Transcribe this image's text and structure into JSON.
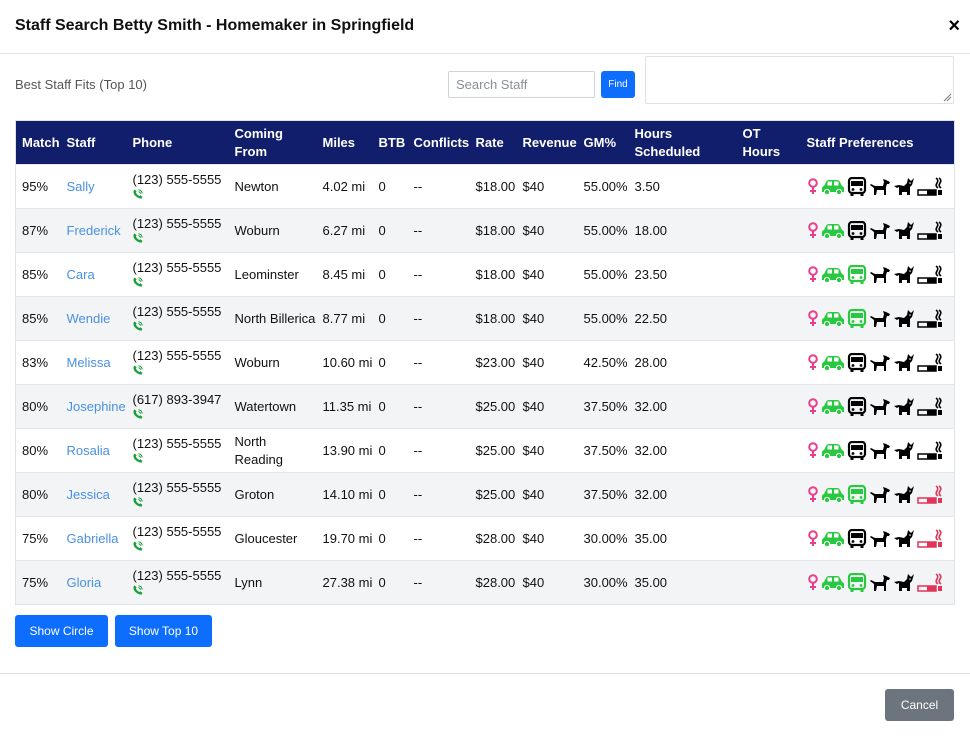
{
  "modal": {
    "title": "Staff Search Betty Smith - Homemaker in Springfield",
    "close_label": "×"
  },
  "toolbar": {
    "best_label": "Best Staff Fits (Top 10)",
    "search_placeholder": "Search Staff",
    "find_label": "Find"
  },
  "table": {
    "headers": {
      "match": "Match",
      "staff": "Staff",
      "phone": "Phone",
      "coming_from": "Coming From",
      "miles": "Miles",
      "btb": "BTB",
      "conflicts": "Conflicts",
      "rate": "Rate",
      "revenue": "Revenue",
      "gm": "GM%",
      "hours_scheduled": "Hours Scheduled",
      "ot_hours": "OT Hours",
      "preferences": "Staff Preferences"
    },
    "rows": [
      {
        "match": "95%",
        "staff": "Sally",
        "phone": "(123) 555-5555",
        "from": "Newton",
        "miles": "4.02 mi",
        "btb": "0",
        "conflicts": "--",
        "rate": "$18.00",
        "revenue": "$40",
        "gm": "55.00%",
        "hours": "3.50",
        "ot": "",
        "prefs": {
          "bus": "black",
          "smoke": "black"
        }
      },
      {
        "match": "87%",
        "staff": "Frederick",
        "phone": "(123) 555-5555",
        "from": "Woburn",
        "miles": "6.27 mi",
        "btb": "0",
        "conflicts": "--",
        "rate": "$18.00",
        "revenue": "$40",
        "gm": "55.00%",
        "hours": "18.00",
        "ot": "",
        "prefs": {
          "bus": "black",
          "smoke": "black"
        }
      },
      {
        "match": "85%",
        "staff": "Cara",
        "phone": "(123) 555-5555",
        "from": "Leominster",
        "miles": "8.45 mi",
        "btb": "0",
        "conflicts": "--",
        "rate": "$18.00",
        "revenue": "$40",
        "gm": "55.00%",
        "hours": "23.50",
        "ot": "",
        "prefs": {
          "bus": "green",
          "smoke": "black"
        }
      },
      {
        "match": "85%",
        "staff": "Wendie",
        "phone": "(123) 555-5555",
        "from": "North Billerica",
        "miles": "8.77 mi",
        "btb": "0",
        "conflicts": "--",
        "rate": "$18.00",
        "revenue": "$40",
        "gm": "55.00%",
        "hours": "22.50",
        "ot": "",
        "prefs": {
          "bus": "green",
          "smoke": "black"
        }
      },
      {
        "match": "83%",
        "staff": "Melissa",
        "phone": "(123) 555-5555",
        "from": "Woburn",
        "miles": "10.60 mi",
        "btb": "0",
        "conflicts": "--",
        "rate": "$23.00",
        "revenue": "$40",
        "gm": "42.50%",
        "hours": "28.00",
        "ot": "",
        "prefs": {
          "bus": "black",
          "smoke": "black"
        }
      },
      {
        "match": "80%",
        "staff": "Josephine",
        "phone": "(617) 893-3947",
        "from": "Watertown",
        "miles": "11.35 mi",
        "btb": "0",
        "conflicts": "--",
        "rate": "$25.00",
        "revenue": "$40",
        "gm": "37.50%",
        "hours": "32.00",
        "ot": "",
        "prefs": {
          "bus": "black",
          "smoke": "black"
        }
      },
      {
        "match": "80%",
        "staff": "Rosalia",
        "phone": "(123) 555-5555",
        "from": "North Reading",
        "miles": "13.90 mi",
        "btb": "0",
        "conflicts": "--",
        "rate": "$25.00",
        "revenue": "$40",
        "gm": "37.50%",
        "hours": "32.00",
        "ot": "",
        "prefs": {
          "bus": "black",
          "smoke": "black"
        }
      },
      {
        "match": "80%",
        "staff": "Jessica",
        "phone": "(123) 555-5555",
        "from": "Groton",
        "miles": "14.10 mi",
        "btb": "0",
        "conflicts": "--",
        "rate": "$25.00",
        "revenue": "$40",
        "gm": "37.50%",
        "hours": "32.00",
        "ot": "",
        "prefs": {
          "bus": "green",
          "smoke": "red"
        }
      },
      {
        "match": "75%",
        "staff": "Gabriella",
        "phone": "(123) 555-5555",
        "from": "Gloucester",
        "miles": "19.70 mi",
        "btb": "0",
        "conflicts": "--",
        "rate": "$28.00",
        "revenue": "$40",
        "gm": "30.00%",
        "hours": "35.00",
        "ot": "",
        "prefs": {
          "bus": "black",
          "smoke": "red"
        }
      },
      {
        "match": "75%",
        "staff": "Gloria",
        "phone": "(123) 555-5555",
        "from": "Lynn",
        "miles": "27.38 mi",
        "btb": "0",
        "conflicts": "--",
        "rate": "$28.00",
        "revenue": "$40",
        "gm": "30.00%",
        "hours": "35.00",
        "ot": "",
        "prefs": {
          "bus": "green",
          "smoke": "red"
        }
      }
    ]
  },
  "actions": {
    "show_circle": "Show Circle",
    "show_top10": "Show Top 10",
    "cancel": "Cancel"
  },
  "colors": {
    "header_bg": "#101e6b",
    "link": "#4a90e2",
    "primary": "#0d6efd",
    "female_icon": "#e83e8c",
    "car_icon": "#28c840",
    "phone_icon": "#1a9e3a",
    "green_icon": "#28c840",
    "black_icon": "#000000",
    "red_icon": "#e0355a",
    "cancel_bg": "#6c757d"
  }
}
